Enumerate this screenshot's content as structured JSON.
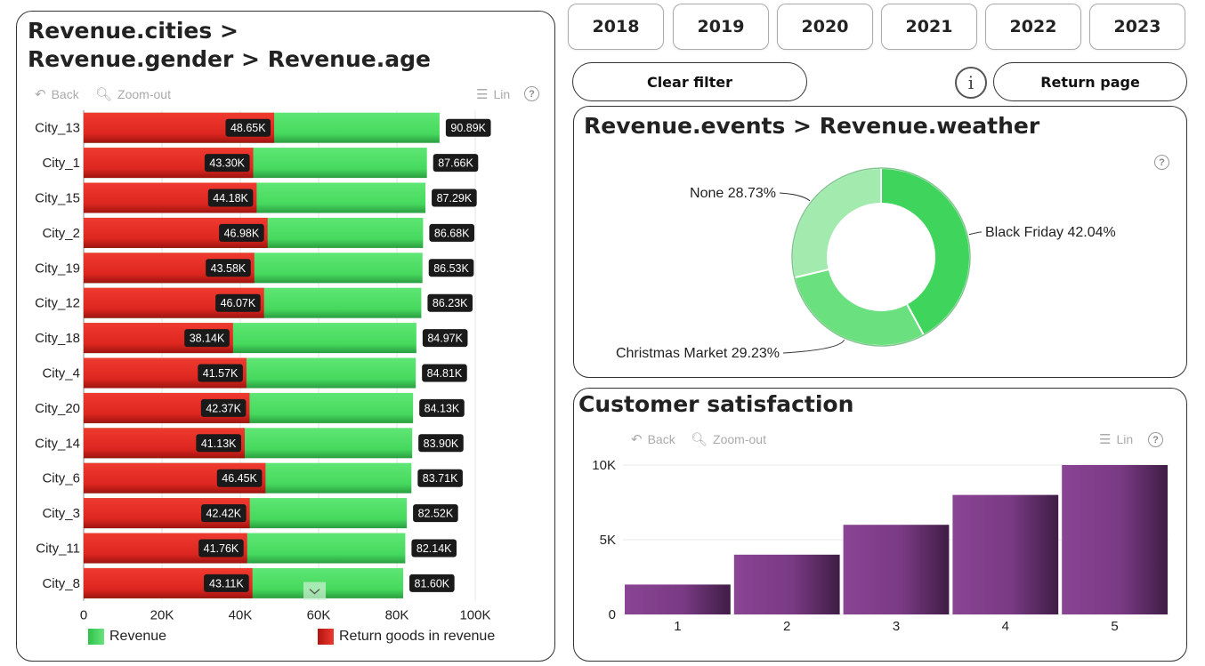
{
  "years": [
    "2018",
    "2019",
    "2020",
    "2021",
    "2022",
    "2023"
  ],
  "buttons": {
    "clear_filter": "Clear filter",
    "return_page": "Return page",
    "info": "i"
  },
  "toolbar": {
    "back": "Back",
    "zoom_out": "Zoom-out",
    "lin": "Lin",
    "help": "?"
  },
  "colors": {
    "revenue_green": "#4cd964",
    "return_red": "#e0241f",
    "purple": "#7b3a85",
    "donut": [
      "#3fd45b",
      "#6be07f",
      "#a3eaae"
    ]
  },
  "chart_data": [
    {
      "type": "bar",
      "orientation": "horizontal",
      "title": "Revenue.cities > Revenue.gender > Revenue.age",
      "categories": [
        "City_13",
        "City_1",
        "City_15",
        "City_2",
        "City_19",
        "City_12",
        "City_18",
        "City_4",
        "City_20",
        "City_14",
        "City_6",
        "City_3",
        "City_11",
        "City_8"
      ],
      "series": [
        {
          "name": "Revenue",
          "values": [
            90890,
            87660,
            87290,
            86680,
            86530,
            86230,
            84970,
            84810,
            84130,
            83900,
            83710,
            82520,
            82140,
            81600
          ],
          "labels": [
            "90.89K",
            "87.66K",
            "87.29K",
            "86.68K",
            "86.53K",
            "86.23K",
            "84.97K",
            "84.81K",
            "84.13K",
            "83.90K",
            "83.71K",
            "82.52K",
            "82.14K",
            "81.60K"
          ]
        },
        {
          "name": "Return goods in revenue",
          "values": [
            48650,
            43300,
            44180,
            46980,
            43580,
            46070,
            38140,
            41570,
            42370,
            41130,
            46450,
            42420,
            41760,
            43110
          ],
          "labels": [
            "48.65K",
            "43.30K",
            "44.18K",
            "46.98K",
            "43.58K",
            "46.07K",
            "38.14K",
            "41.57K",
            "42.37K",
            "41.13K",
            "46.45K",
            "42.42K",
            "41.76K",
            "43.11K"
          ]
        }
      ],
      "xlim": [
        0,
        100000
      ],
      "xticks": [
        "0",
        "20K",
        "40K",
        "60K",
        "80K",
        "100K"
      ],
      "grid": true,
      "legend": "bottom"
    },
    {
      "type": "pie",
      "variant": "donut",
      "title": "Revenue.events > Revenue.weather",
      "slices": [
        {
          "label": "Black Friday 42.04%",
          "value": 42.04
        },
        {
          "label": "Christmas Market 29.23%",
          "value": 29.23
        },
        {
          "label": "None 28.73%",
          "value": 28.73
        }
      ]
    },
    {
      "type": "bar",
      "title": "Customer satisfaction",
      "categories": [
        "1",
        "2",
        "3",
        "4",
        "5"
      ],
      "values": [
        2000,
        4000,
        6000,
        8000,
        10000
      ],
      "ylim": [
        0,
        10000
      ],
      "yticks": [
        "0",
        "5K",
        "10K"
      ],
      "grid": true
    }
  ]
}
